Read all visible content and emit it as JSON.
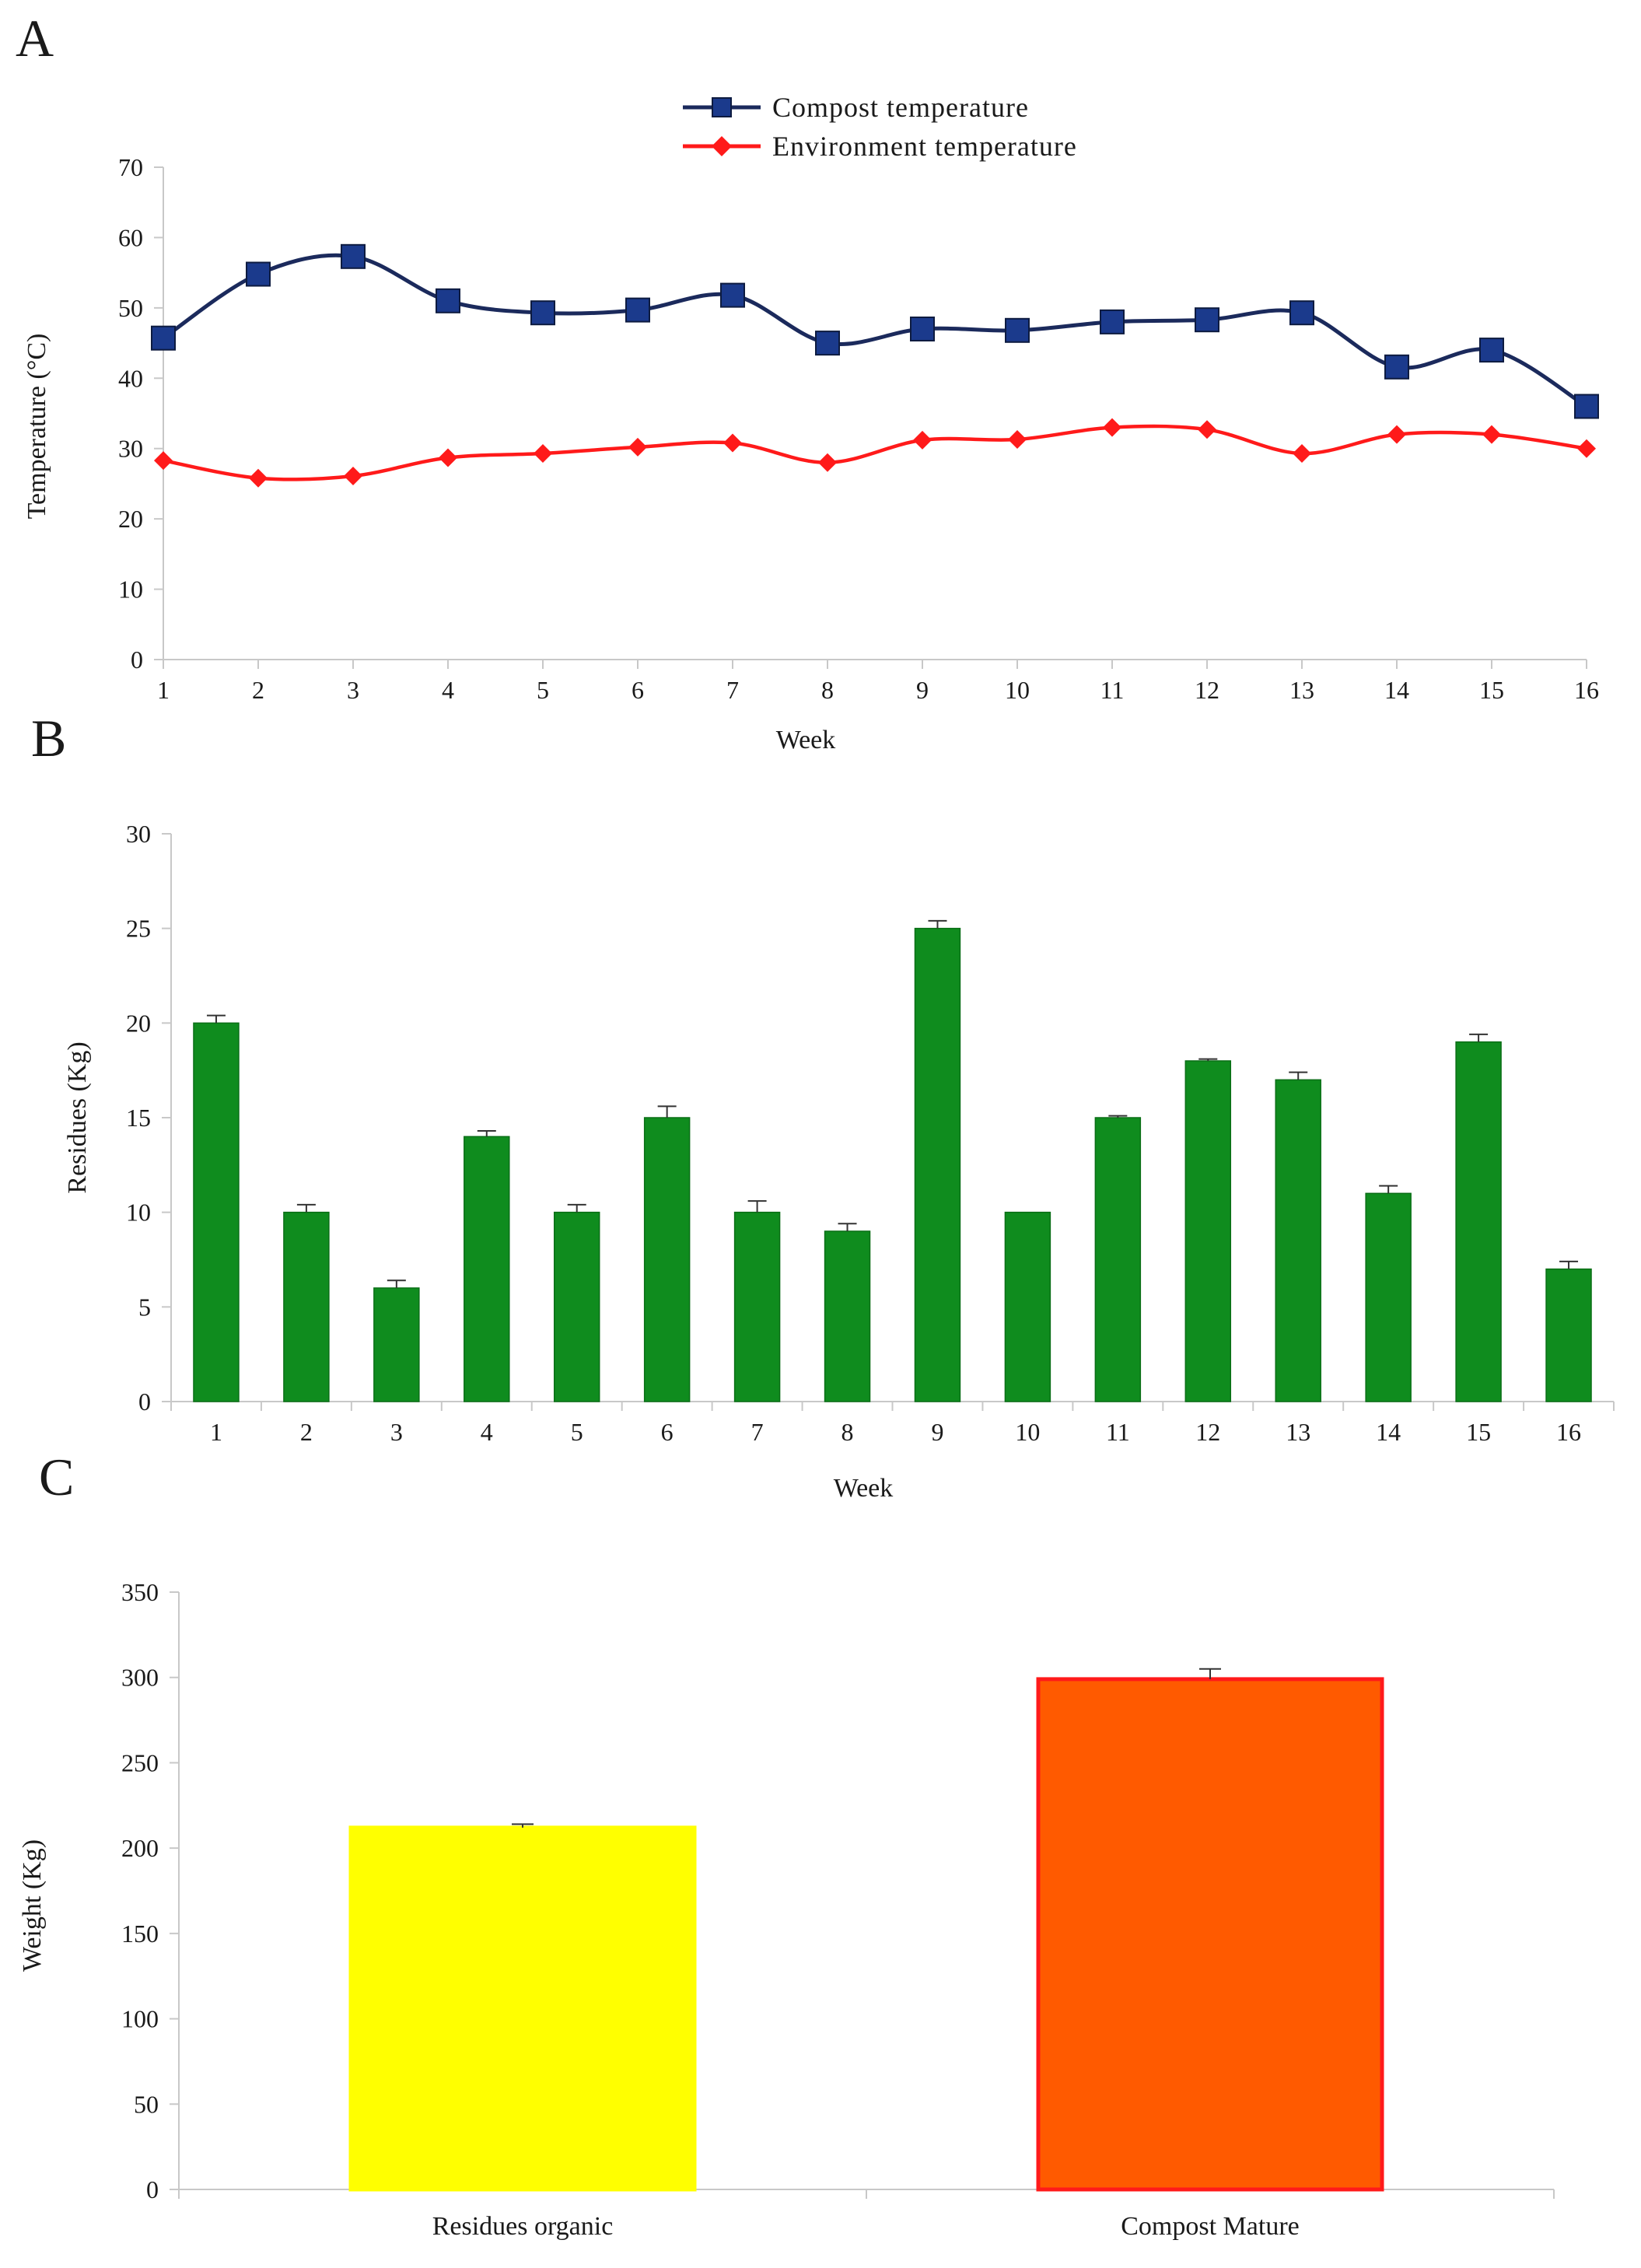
{
  "chart_data": [
    {
      "type": "line",
      "panel": "A",
      "title": "",
      "xlabel": "Week",
      "ylabel": "Temperature (°C)",
      "ylim": [
        0,
        70
      ],
      "yticks": [
        0,
        10,
        20,
        30,
        40,
        50,
        60,
        70
      ],
      "categories": [
        "1",
        "2",
        "3",
        "4",
        "5",
        "6",
        "7",
        "8",
        "9",
        "10",
        "11",
        "12",
        "13",
        "14",
        "15",
        "16"
      ],
      "legend_position": "top-center",
      "series": [
        {
          "name": "Compost temperature",
          "color": "#1b2a5c",
          "marker": "square",
          "values": [
            45.7,
            54.8,
            57.3,
            51.0,
            49.3,
            49.7,
            51.8,
            45.0,
            47.0,
            46.8,
            48.0,
            48.3,
            49.3,
            41.6,
            44.0,
            36.0
          ]
        },
        {
          "name": "Environment temperature",
          "color": "#ff1a1a",
          "marker": "diamond",
          "values": [
            28.3,
            25.8,
            26.1,
            28.7,
            29.3,
            30.2,
            30.8,
            28.0,
            31.2,
            31.3,
            33.0,
            32.7,
            29.3,
            32.0,
            32.0,
            30.0
          ]
        }
      ]
    },
    {
      "type": "bar",
      "panel": "B",
      "title": "",
      "xlabel": "Week",
      "ylabel": "Residues (Kg)",
      "ylim": [
        0,
        30
      ],
      "yticks": [
        0,
        5,
        10,
        15,
        20,
        25,
        30
      ],
      "categories": [
        "1",
        "2",
        "3",
        "4",
        "5",
        "6",
        "7",
        "8",
        "9",
        "10",
        "11",
        "12",
        "13",
        "14",
        "15",
        "16"
      ],
      "bar_color": "#0f8c1e",
      "values": [
        20,
        10,
        6,
        14,
        10,
        15,
        10,
        9,
        25,
        10,
        15,
        18,
        17,
        11,
        19,
        7
      ],
      "errors": [
        0.4,
        0.4,
        0.4,
        0.3,
        0.4,
        0.6,
        0.6,
        0.4,
        0.4,
        0.0,
        0.1,
        0.1,
        0.4,
        0.4,
        0.4,
        0.4
      ]
    },
    {
      "type": "bar",
      "panel": "C",
      "title": "",
      "xlabel": "",
      "ylabel": "Weight (Kg)",
      "ylim": [
        0,
        350
      ],
      "yticks": [
        0,
        50,
        100,
        150,
        200,
        250,
        300,
        350
      ],
      "categories": [
        "Residues organic",
        "Compost Mature"
      ],
      "bar_colors": [
        "#ffff00",
        "#ff5a00"
      ],
      "bar_outlines": [
        "#ffff00",
        "#ff1a1a"
      ],
      "values": [
        212,
        299
      ],
      "errors": [
        2,
        6
      ]
    }
  ]
}
